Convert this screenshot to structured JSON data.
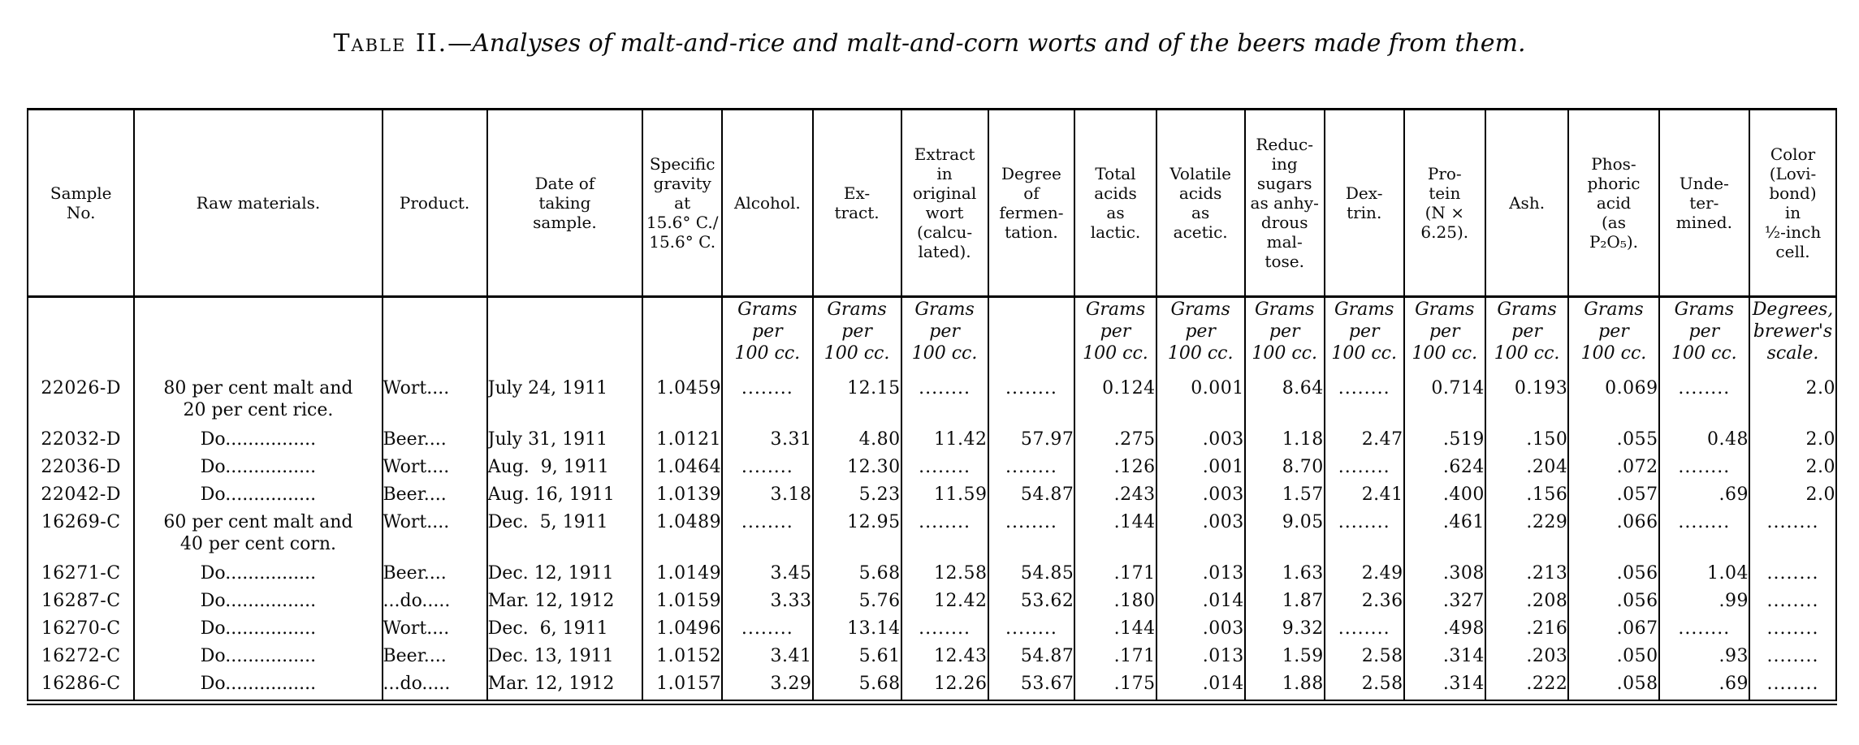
{
  "page": {
    "title": {
      "label": "Table II.",
      "separator": "—",
      "text": "Analyses of malt-and-rice and malt-and-corn worts and of the beers made from them."
    }
  },
  "table": {
    "columns": [
      "Sample\nNo.",
      "Raw materials.",
      "Product.",
      "Date of\ntaking\nsample.",
      "Specific\ngravity\nat\n15.6° C./\n15.6° C.",
      "Alcohol.",
      "Ex-\ntract.",
      "Extract\nin\noriginal\nwort\n(calcu-\nlated).",
      "Degree\nof\nfermen-\ntation.",
      "Total\nacids\nas\nlactic.",
      "Volatile\nacids\nas\nacetic.",
      "Reduc-\ning\nsugars\nas anhy-\ndrous\nmal-\ntose.",
      "Dex-\ntrin.",
      "Pro-\ntein\n(N ×\n6.25).",
      "Ash.",
      "Phos-\nphoric\nacid\n(as\nP₂O₅).",
      "Unde-\nter-\nmined.",
      "Color\n(Lovi-\nbond)\nin\n½-inch\ncell."
    ],
    "units_row": [
      "",
      "",
      "",
      "",
      "",
      "Grams\nper\n100 cc.",
      "Grams\nper\n100 cc.",
      "Grams\nper\n100 cc.",
      "",
      "Grams\nper\n100 cc.",
      "Grams\nper\n100 cc.",
      "Grams\nper\n100 cc.",
      "Grams\nper\n100 cc.",
      "Grams\nper\n100 cc.",
      "Grams\nper\n100 cc.",
      "Grams\nper\n100 cc.",
      "Grams\nper\n100 cc.",
      "Degrees,\nbrewer's\nscale."
    ],
    "row_groups": [
      [
        [
          "22026-D",
          "80 per cent malt and\n20 per cent rice.",
          "Wort....",
          "July 24, 1911",
          "1.0459",
          "........",
          "12.15",
          "........",
          "........",
          "0.124",
          "0.001",
          "8.64",
          "........",
          "0.714",
          "0.193",
          "0.069",
          "........",
          "2.0"
        ],
        [
          "22032-D",
          "Do................",
          "Beer....",
          "July 31, 1911",
          "1.0121",
          "3.31",
          "4.80",
          "11.42",
          "57.97",
          ".275",
          ".003",
          "1.18",
          "2.47",
          ".519",
          ".150",
          ".055",
          "0.48",
          "2.0"
        ]
      ],
      [
        [
          "22036-D",
          "Do................",
          "Wort....",
          "Aug.  9, 1911",
          "1.0464",
          "........",
          "12.30",
          "........",
          "........",
          ".126",
          ".001",
          "8.70",
          "........",
          ".624",
          ".204",
          ".072",
          "........",
          "2.0"
        ],
        [
          "22042-D",
          "Do................",
          "Beer....",
          "Aug. 16, 1911",
          "1.0139",
          "3.18",
          "5.23",
          "11.59",
          "54.87",
          ".243",
          ".003",
          "1.57",
          "2.41",
          ".400",
          ".156",
          ".057",
          ".69",
          "2.0"
        ]
      ],
      [
        [
          "16269-C",
          "60 per cent malt and\n40 per cent corn.",
          "Wort....",
          "Dec.  5, 1911",
          "1.0489",
          "........",
          "12.95",
          "........",
          "........",
          ".144",
          ".003",
          "9.05",
          "........",
          ".461",
          ".229",
          ".066",
          "........",
          "........"
        ],
        [
          "16271-C",
          "Do................",
          "Beer....",
          "Dec. 12, 1911",
          "1.0149",
          "3.45",
          "5.68",
          "12.58",
          "54.85",
          ".171",
          ".013",
          "1.63",
          "2.49",
          ".308",
          ".213",
          ".056",
          "1.04",
          "........"
        ],
        [
          "16287-C",
          "Do................",
          "...do.....",
          "Mar. 12, 1912",
          "1.0159",
          "3.33",
          "5.76",
          "12.42",
          "53.62",
          ".180",
          ".014",
          "1.87",
          "2.36",
          ".327",
          ".208",
          ".056",
          ".99",
          "........"
        ]
      ],
      [
        [
          "16270-C",
          "Do................",
          "Wort....",
          "Dec.  6, 1911",
          "1.0496",
          "........",
          "13.14",
          "........",
          "........",
          ".144",
          ".003",
          "9.32",
          "........",
          ".498",
          ".216",
          ".067",
          "........",
          "........"
        ],
        [
          "16272-C",
          "Do................",
          "Beer....",
          "Dec. 13, 1911",
          "1.0152",
          "3.41",
          "5.61",
          "12.43",
          "54.87",
          ".171",
          ".013",
          "1.59",
          "2.58",
          ".314",
          ".203",
          ".050",
          ".93",
          "........"
        ],
        [
          "16286-C",
          "Do................",
          "...do.....",
          "Mar. 12, 1912",
          "1.0157",
          "3.29",
          "5.68",
          "12.26",
          "53.67",
          ".175",
          ".014",
          "1.88",
          "2.58",
          ".314",
          ".222",
          ".058",
          ".69",
          "........"
        ]
      ]
    ]
  }
}
